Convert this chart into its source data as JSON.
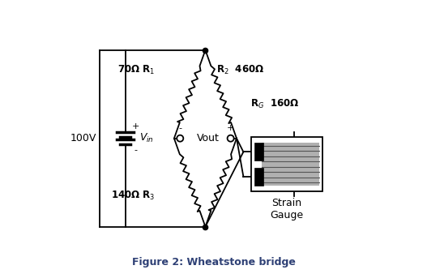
{
  "title": "Figure 2: Wheatstone bridge",
  "voltage_label": "100V",
  "r1_label": "70Ω R$_1$",
  "r2_label": "R$_2$  460Ω",
  "r3_label": "140Ω R$_3$",
  "rg_label": "R$_G$  160Ω",
  "vout_label": "Vout",
  "strain_label": "Strain\nGauge",
  "bg_color": "#ffffff",
  "line_color": "#000000",
  "title_color": "#2e4075"
}
